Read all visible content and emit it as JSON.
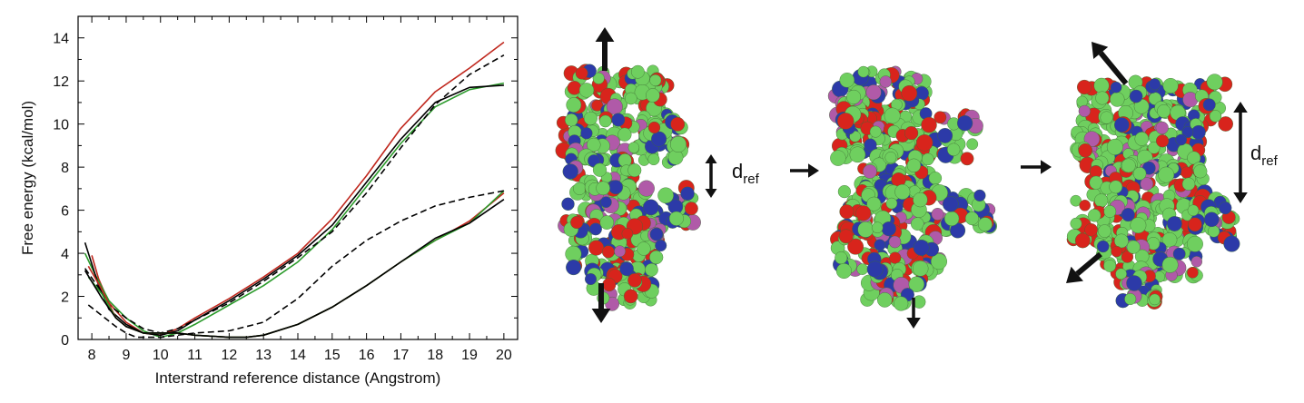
{
  "chart_data": {
    "type": "line",
    "title": "",
    "xlabel": "Interstrand reference distance (Angstrom)",
    "ylabel": "Free energy (kcal/mol)",
    "xlim": [
      7.6,
      20.4
    ],
    "ylim": [
      0,
      15
    ],
    "xticks": [
      8,
      9,
      10,
      11,
      12,
      13,
      14,
      15,
      16,
      17,
      18,
      19,
      20
    ],
    "yticks": [
      0,
      2,
      4,
      6,
      8,
      10,
      12,
      14
    ],
    "grid": false,
    "legend": "none",
    "series": [
      {
        "color": "#c0281e",
        "dash": false,
        "x": [
          8.0,
          8.2,
          8.5,
          9.0,
          9.5,
          10.0,
          10.5,
          11.0,
          12.0,
          13.0,
          14.0,
          15.0,
          16.0,
          17.0,
          18.0,
          19.0,
          20.0
        ],
        "y": [
          3.9,
          2.8,
          1.7,
          0.8,
          0.3,
          0.2,
          0.5,
          1.0,
          1.9,
          2.9,
          4.0,
          5.6,
          7.6,
          9.8,
          11.5,
          12.6,
          13.8
        ]
      },
      {
        "color": "#2a9a2a",
        "dash": false,
        "x": [
          7.8,
          8.1,
          8.5,
          9.0,
          9.5,
          10.0,
          10.5,
          11.0,
          12.0,
          13.0,
          14.0,
          15.0,
          16.0,
          17.0,
          18.0,
          19.0,
          20.0
        ],
        "y": [
          4.0,
          3.0,
          1.8,
          1.0,
          0.4,
          0.1,
          0.3,
          0.7,
          1.6,
          2.5,
          3.6,
          5.1,
          7.1,
          9.1,
          10.8,
          11.6,
          11.9
        ]
      },
      {
        "color": "#000000",
        "dash": false,
        "x": [
          7.8,
          8.2,
          8.5,
          9.0,
          9.5,
          10.0,
          10.5,
          11.0,
          12.0,
          13.0,
          14.0,
          15.0,
          16.0,
          17.0,
          18.0,
          19.0,
          20.0
        ],
        "y": [
          4.5,
          2.5,
          1.4,
          0.7,
          0.3,
          0.2,
          0.4,
          0.9,
          1.8,
          2.8,
          3.9,
          5.3,
          7.3,
          9.3,
          11.0,
          11.7,
          11.8
        ]
      },
      {
        "color": "#000000",
        "dash": true,
        "x": [
          7.8,
          8.2,
          8.5,
          9.0,
          9.5,
          10.0,
          10.5,
          11.0,
          12.0,
          13.0,
          14.0,
          15.0,
          16.0,
          17.0,
          18.0,
          19.0,
          20.0
        ],
        "y": [
          3.3,
          2.4,
          1.6,
          1.0,
          0.5,
          0.3,
          0.5,
          0.9,
          1.7,
          2.7,
          3.8,
          5.0,
          6.8,
          8.9,
          10.9,
          12.3,
          13.2
        ]
      },
      {
        "color": "#c0281e",
        "dash": false,
        "x": [
          7.9,
          8.3,
          8.7,
          9.0,
          9.5,
          10.0,
          10.5,
          11.0,
          12.0,
          12.5,
          13.0,
          14.0,
          15.0,
          16.0,
          17.0,
          18.0,
          19.0,
          20.0
        ],
        "y": [
          3.4,
          2.3,
          1.0,
          0.6,
          0.3,
          0.3,
          0.3,
          0.2,
          0.1,
          0.1,
          0.2,
          0.7,
          1.5,
          2.5,
          3.6,
          4.6,
          5.5,
          6.8
        ]
      },
      {
        "color": "#2a9a2a",
        "dash": false,
        "x": [
          7.9,
          8.3,
          8.7,
          9.0,
          9.5,
          10.0,
          10.5,
          11.0,
          12.0,
          12.5,
          13.0,
          14.0,
          15.0,
          16.0,
          17.0,
          18.0,
          19.0,
          20.0
        ],
        "y": [
          2.9,
          2.1,
          1.0,
          0.6,
          0.3,
          0.3,
          0.3,
          0.2,
          0.1,
          0.1,
          0.2,
          0.7,
          1.5,
          2.5,
          3.6,
          4.6,
          5.4,
          6.9
        ]
      },
      {
        "color": "#000000",
        "dash": false,
        "x": [
          7.8,
          8.3,
          8.7,
          9.0,
          9.5,
          10.0,
          10.5,
          11.0,
          12.0,
          12.5,
          13.0,
          14.0,
          15.0,
          16.0,
          17.0,
          18.0,
          19.0,
          20.0
        ],
        "y": [
          3.2,
          1.9,
          1.0,
          0.6,
          0.3,
          0.3,
          0.3,
          0.2,
          0.1,
          0.1,
          0.2,
          0.7,
          1.5,
          2.5,
          3.6,
          4.7,
          5.4,
          6.5
        ]
      },
      {
        "color": "#000000",
        "dash": true,
        "x": [
          7.9,
          8.3,
          8.7,
          9.0,
          9.3,
          9.5,
          10.0,
          10.5,
          11.0,
          12.0,
          13.0,
          14.0,
          15.0,
          16.0,
          17.0,
          18.0,
          19.0,
          20.0
        ],
        "y": [
          1.6,
          1.1,
          0.6,
          0.3,
          0.1,
          0.1,
          0.1,
          0.2,
          0.3,
          0.4,
          0.8,
          1.9,
          3.4,
          4.6,
          5.5,
          6.2,
          6.6,
          6.9
        ]
      }
    ]
  },
  "annotations": {
    "dref_main": "d",
    "dref_sub": "ref"
  },
  "colors": {
    "carbon": "#6fcf5f",
    "oxygen": "#d8241c",
    "nitrogen": "#2c3aa8",
    "phosphorus": "#b05aa8",
    "arrow": "#111111"
  }
}
